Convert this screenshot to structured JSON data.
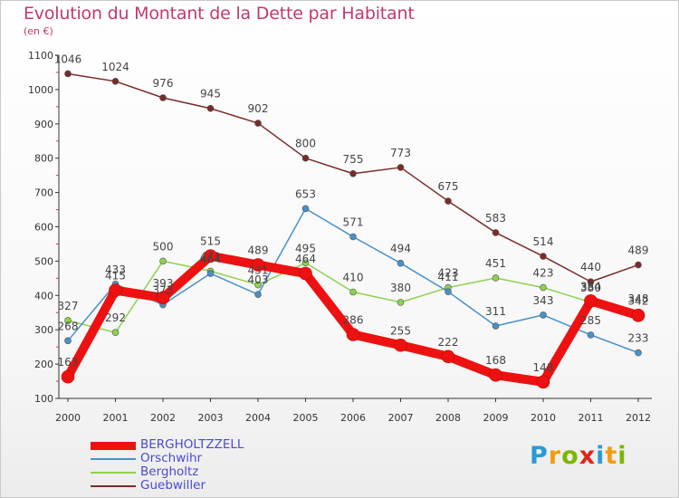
{
  "header": {
    "title": "Evolution du Montant de la Dette par Habitant",
    "unit": "(en €)"
  },
  "brand": {
    "letters": [
      "P",
      "r",
      "o",
      "x",
      "i",
      "t",
      "i"
    ],
    "colors": [
      "#2b9bd6",
      "#f39c12",
      "#7ab800",
      "#e2231a",
      "#2b9bd6",
      "#f39c12",
      "#7ab800"
    ]
  },
  "chart_data": {
    "type": "line",
    "title": "Evolution du Montant de la Dette par Habitant",
    "subtitle": "(en €)",
    "xlabel": "",
    "ylabel": "",
    "categories": [
      "2000",
      "2001",
      "2002",
      "2003",
      "2004",
      "2005",
      "2006",
      "2007",
      "2008",
      "2009",
      "2010",
      "2011",
      "2012"
    ],
    "ylim": [
      100,
      1100
    ],
    "yticks": [
      100,
      200,
      300,
      400,
      500,
      600,
      700,
      800,
      900,
      1000,
      1100
    ],
    "grid": false,
    "legend": "bottom-left",
    "series": [
      {
        "name": "BERGHOLTZZELL",
        "color": "#ee1111",
        "width": 10,
        "values": [
          163,
          415,
          393,
          515,
          489,
          464,
          286,
          255,
          222,
          168,
          148,
          384,
          342
        ],
        "labels": [
          "163",
          "415",
          "393",
          "515",
          "489",
          "464",
          "286",
          "255",
          "222",
          "168",
          "148",
          "384",
          "342"
        ]
      },
      {
        "name": "Orschwihr",
        "color": "#4a90c8",
        "width": 1.5,
        "values": [
          268,
          433,
          373,
          464,
          403,
          653,
          571,
          494,
          411,
          311,
          343,
          285,
          233
        ],
        "labels": [
          "268",
          "433",
          "373",
          "464",
          "403",
          "653",
          "571",
          "494",
          "411",
          "311",
          "343",
          "285",
          "233"
        ]
      },
      {
        "name": "Bergholtz",
        "color": "#8ed14f",
        "width": 1.5,
        "values": [
          327,
          292,
          500,
          471,
          431,
          495,
          410,
          380,
          423,
          451,
          423,
          380,
          348
        ],
        "labels": [
          "327",
          "292",
          "500",
          "471",
          "431",
          "495",
          "410",
          "380",
          "423",
          "451",
          "423",
          "380",
          "348"
        ]
      },
      {
        "name": "Guebwiller",
        "color": "#7a2a2a",
        "width": 1.5,
        "values": [
          1046,
          1024,
          976,
          945,
          902,
          800,
          755,
          773,
          675,
          583,
          514,
          440,
          489
        ],
        "labels": [
          "1046",
          "1024",
          "976",
          "945",
          "902",
          "800",
          "755",
          "773",
          "675",
          "583",
          "514",
          "440",
          "489"
        ]
      }
    ]
  }
}
